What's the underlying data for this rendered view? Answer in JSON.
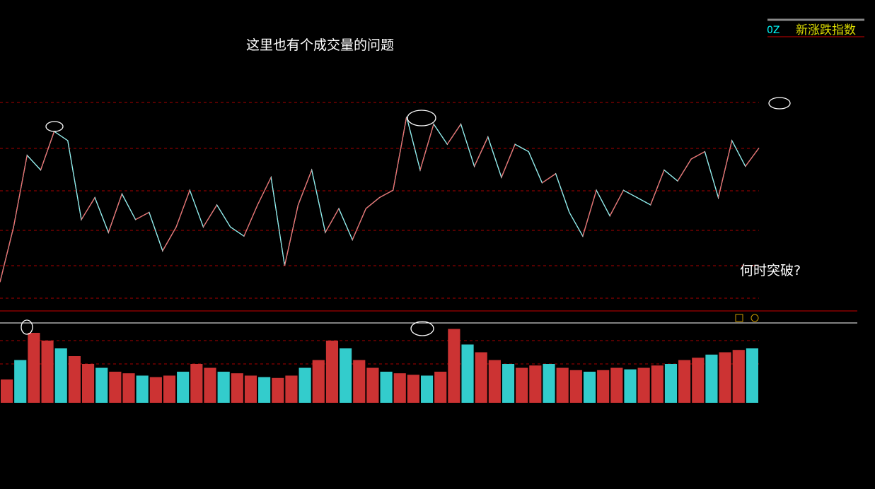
{
  "annotations": {
    "title": "这里也有个成交量的问题",
    "question": "何时突破?"
  },
  "indicator": {
    "code": "0Z",
    "name": "新涨跌指数"
  },
  "price": {
    "values": [
      8,
      38,
      77,
      69,
      90,
      85,
      42,
      54,
      35,
      56,
      42,
      46,
      25,
      38,
      58,
      38,
      50,
      38,
      33,
      50,
      65,
      17,
      50,
      69,
      35,
      48,
      31,
      48,
      54,
      58,
      98,
      69,
      94,
      83,
      94,
      71,
      87,
      65,
      83,
      79,
      62,
      67,
      46,
      33,
      58,
      44,
      58,
      54,
      50,
      69,
      63,
      75,
      79,
      54,
      85,
      71,
      81
    ],
    "ylim": [
      0,
      110
    ]
  },
  "volume": {
    "values": [
      30,
      55,
      90,
      80,
      70,
      60,
      50,
      45,
      40,
      38,
      35,
      33,
      35,
      40,
      50,
      45,
      40,
      38,
      35,
      33,
      32,
      35,
      45,
      55,
      80,
      70,
      55,
      45,
      40,
      38,
      36,
      35,
      40,
      95,
      75,
      65,
      55,
      50,
      45,
      48,
      50,
      45,
      42,
      40,
      42,
      45,
      43,
      45,
      48,
      50,
      55,
      58,
      62,
      65,
      68,
      70
    ],
    "ylim": [
      0,
      100
    ]
  }
}
